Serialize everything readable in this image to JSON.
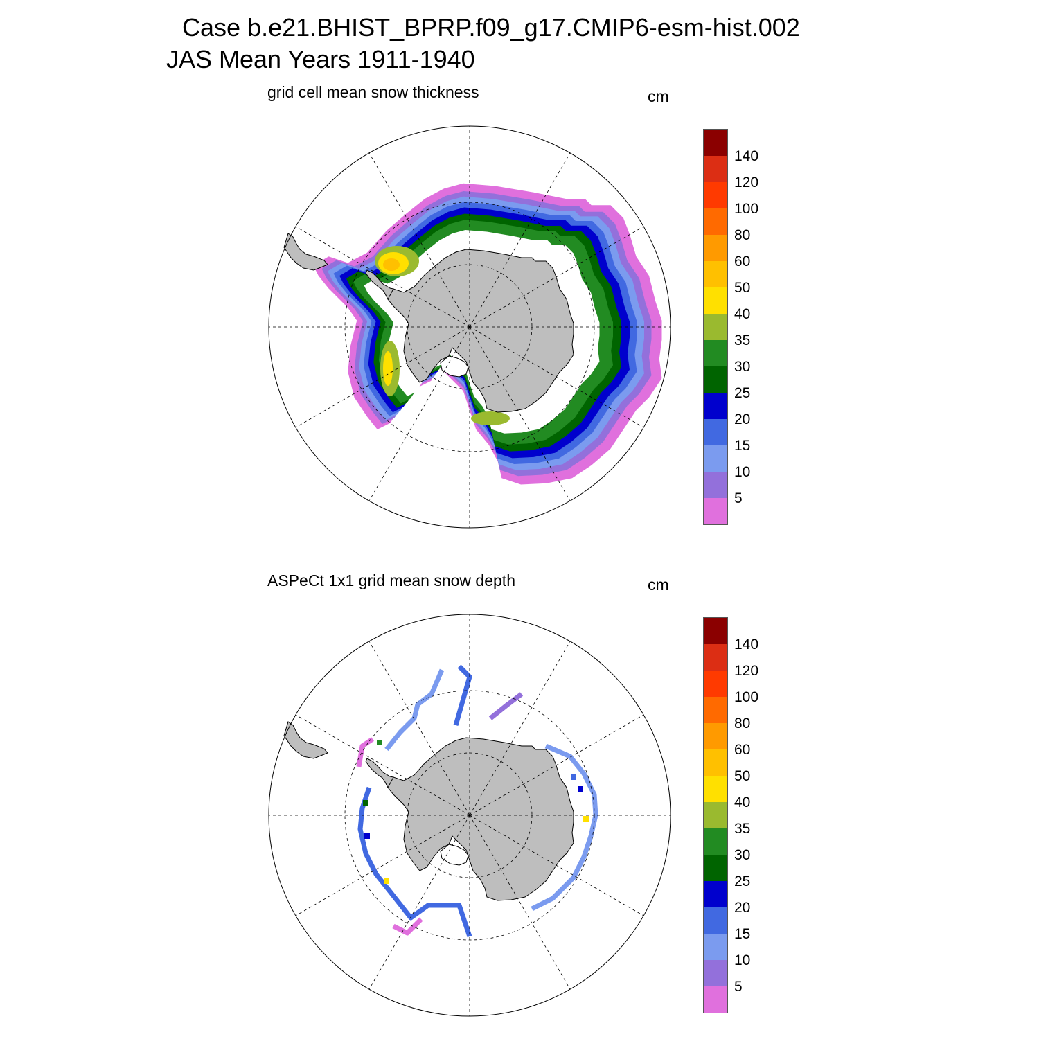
{
  "header": {
    "line1": "Case b.e21.BHIST_BPRP.f09_g17.CMIP6-esm-hist.002",
    "line2": "JAS Mean   Years 1911-1940"
  },
  "colors": {
    "land": "#bebebe",
    "coast": "#000000",
    "grid": "#000000"
  },
  "chart_data": [
    {
      "type": "heatmap",
      "projection": "south-polar-stereographic",
      "title": "grid cell mean snow thickness",
      "units": "cm",
      "grid_lines": true,
      "levels": [
        "5",
        "10",
        "15",
        "20",
        "25",
        "30",
        "35",
        "40",
        "50",
        "60",
        "80",
        "100",
        "120",
        "140"
      ],
      "level_colors": [
        "#e070dd",
        "#9370db",
        "#7b9bef",
        "#4169e1",
        "#0000cd",
        "#006400",
        "#228b22",
        "#9aba2f",
        "#ffe000",
        "#ffc000",
        "#ff9a00",
        "#ff6a00",
        "#ff3a00",
        "#dc2e14",
        "#8b0000"
      ],
      "field": "continuous sea-ice snow ring around Antarctica; thickest (40-60 cm) in the Weddell Sea, 25-35 cm band near the coast, thinning to under 10 cm at the ice edge"
    },
    {
      "type": "heatmap",
      "projection": "south-polar-stereographic",
      "title": "ASPeCt 1x1 grid mean snow depth",
      "units": "cm",
      "grid_lines": true,
      "levels": [
        "5",
        "10",
        "15",
        "20",
        "25",
        "30",
        "35",
        "40",
        "50",
        "60",
        "80",
        "100",
        "120",
        "140"
      ],
      "level_colors": [
        "#e070dd",
        "#9370db",
        "#7b9bef",
        "#4169e1",
        "#0000cd",
        "#006400",
        "#228b22",
        "#9aba2f",
        "#ffe000",
        "#ffc000",
        "#ff9a00",
        "#ff6a00",
        "#ff3a00",
        "#dc2e14",
        "#8b0000"
      ],
      "field": "sparse ship-track observations, mostly 5-20 cm"
    }
  ]
}
